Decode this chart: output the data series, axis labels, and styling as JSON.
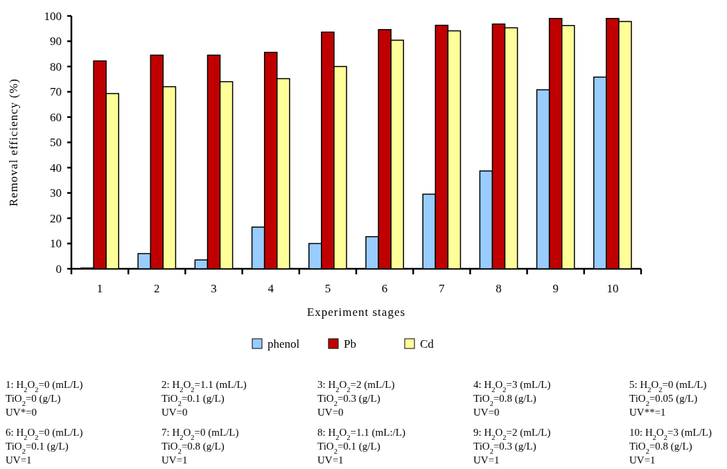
{
  "chart_data": {
    "type": "bar",
    "xlabel": "Experiment stages",
    "ylabel": "Removal efficiency (%)",
    "categories": [
      "1",
      "2",
      "3",
      "4",
      "5",
      "6",
      "7",
      "8",
      "9",
      "10"
    ],
    "series": [
      {
        "name": "phenol",
        "color": "#99ccff",
        "values": [
          0.3,
          6,
          3.5,
          16.5,
          10,
          12.7,
          29.5,
          38.7,
          70.8,
          75.8
        ]
      },
      {
        "name": "Pb",
        "color": "#c00000",
        "values": [
          82.2,
          84.5,
          84.5,
          85.6,
          93.6,
          94.6,
          96.3,
          96.8,
          99,
          99
        ]
      },
      {
        "name": "Cd",
        "color": "#ffff99",
        "values": [
          69.3,
          72,
          74,
          75.2,
          80,
          90.4,
          94.1,
          95.3,
          96.2,
          97.8
        ]
      }
    ],
    "ylim": [
      0,
      100
    ],
    "yticks": [
      0,
      10,
      20,
      30,
      40,
      50,
      60,
      70,
      80,
      90,
      100
    ],
    "grid": false,
    "legend": "bottom",
    "annotations": [
      "1: H$_{2}$O$_{2}$=0 (mL/L)\nTiO$_{2}$=0 (g/L)\nUV*=0",
      "2: H$_{2}$O$_{2}$=1.1 (mL/L)\nTiO$_{2}$=0.1 (g/L)\nUV=0",
      "3: H$_{2}$O$_{2}$=2 (mL/L)\nTiO$_{2}$=0.3 (g/L)\nUV=0",
      "4: H$_{2}$O$_{2}$=3 (mL/L)\nTiO$_{2}$=0.8 (g/L)\nUV=0",
      "5: H$_{2}$O$_{2}$=0 (mL/L)\nTiO$_{2}$=0.05 (g/L)\nUV**=1",
      "6: H$_{2}$O$_{2}$=0 (mL/L)\nTiO$_{2}$=0.1 (g/L)\nUV=1",
      "7: H$_{2}$O$_{2}$=0 (mL/L)\nTiO$_{2}$=0.8 (g/L)\nUV=1",
      "8: H$_{2}$O$_{2}$=1.1 (mL:/L)\nTiO$_{2}$=0.1 (g/L)\nUV=1",
      "9: H$_{2}$O$_{2}$=2 (mL/L)\nTiO$_{2}$=0.3 (g/L)\nUV=1",
      "10: H$_{2}$O$_{2}$=3 (mL/L)\nTiO$_{2}$=0.8 (g/L)\nUV=1"
    ]
  }
}
